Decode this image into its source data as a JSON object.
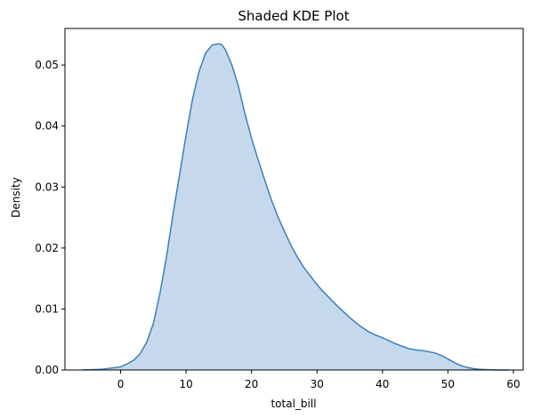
{
  "chart_data": {
    "type": "area",
    "title": "Shaded KDE Plot",
    "xlabel": "total_bill",
    "ylabel": "Density",
    "xlim": [
      -8.5,
      61.5
    ],
    "ylim": [
      0,
      0.056
    ],
    "xticks": [
      0,
      10,
      20,
      30,
      40,
      50,
      60
    ],
    "yticks": [
      "0.00",
      "0.01",
      "0.02",
      "0.03",
      "0.04",
      "0.05"
    ],
    "grid": false,
    "legend": "none",
    "colors": {
      "line": "#3a7fb8",
      "fill": "#c6d9ec",
      "axes": "#000000"
    },
    "series": [
      {
        "x": [
          -5.8,
          -3,
          0,
          1,
          2,
          3,
          4,
          5,
          6,
          7,
          8,
          9,
          10,
          11,
          12,
          13,
          14,
          15,
          15.5,
          16,
          17,
          18,
          19,
          20,
          21,
          22,
          23,
          24,
          25,
          26,
          27,
          28,
          29,
          30,
          31,
          32,
          33,
          34,
          35,
          36,
          37,
          38,
          39,
          40,
          41,
          42,
          43,
          44,
          45,
          46,
          47,
          48,
          49,
          50,
          51,
          52,
          53,
          54,
          55,
          56,
          57,
          58,
          59.3
        ],
        "y": [
          0.0,
          0.0001,
          0.0005,
          0.001,
          0.0016,
          0.0027,
          0.0046,
          0.0076,
          0.0125,
          0.0185,
          0.0255,
          0.032,
          0.0385,
          0.0445,
          0.049,
          0.052,
          0.0533,
          0.0535,
          0.0533,
          0.0525,
          0.05,
          0.0465,
          0.042,
          0.038,
          0.0345,
          0.0312,
          0.028,
          0.0252,
          0.0228,
          0.0205,
          0.0185,
          0.0168,
          0.0154,
          0.014,
          0.0128,
          0.0117,
          0.0106,
          0.0096,
          0.0086,
          0.0077,
          0.0069,
          0.0062,
          0.0057,
          0.0053,
          0.0048,
          0.0043,
          0.0039,
          0.0035,
          0.0033,
          0.0032,
          0.003,
          0.0028,
          0.0024,
          0.0018,
          0.0012,
          0.0007,
          0.0004,
          0.0002,
          0.0001,
          5e-05,
          2e-05,
          0.0,
          0.0
        ]
      }
    ]
  }
}
